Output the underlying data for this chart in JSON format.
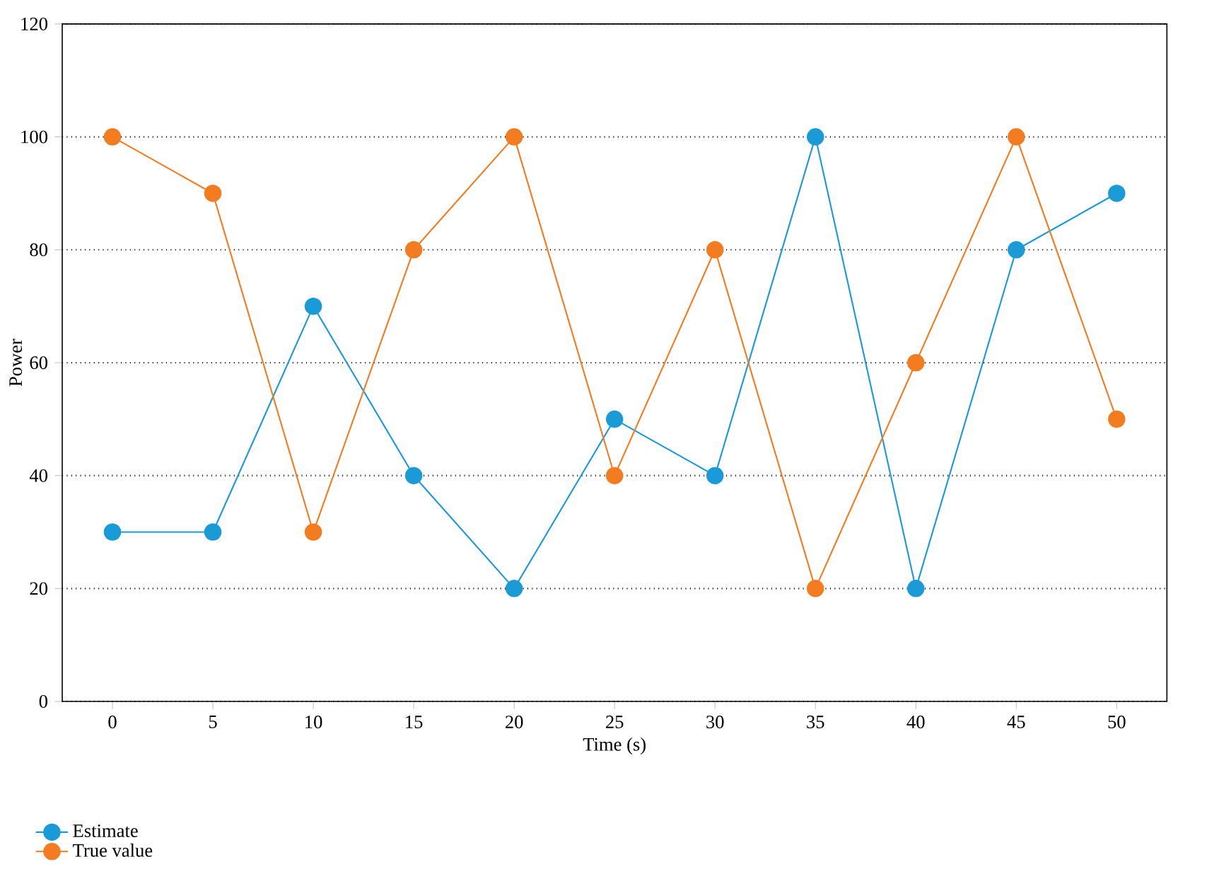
{
  "chart_data": {
    "type": "line",
    "xlabel": "Time (s)",
    "ylabel": "Power",
    "categories": [
      "0",
      "5",
      "10",
      "15",
      "20",
      "25",
      "30",
      "35",
      "40",
      "45",
      "50"
    ],
    "ylim": [
      0,
      120
    ],
    "yticks": [
      0,
      20,
      40,
      60,
      80,
      100,
      120
    ],
    "grid": "y",
    "legend": "bottom left",
    "marker": "circle",
    "line_style": "solid",
    "series": [
      {
        "name": "Estimate",
        "color": "#1a9bd7",
        "values": [
          30,
          30,
          70,
          40,
          20,
          50,
          40,
          100,
          20,
          80,
          90
        ]
      },
      {
        "name": "True value",
        "color": "#f47c20",
        "values": [
          100,
          90,
          30,
          80,
          100,
          40,
          80,
          20,
          60,
          100,
          50
        ]
      }
    ]
  }
}
